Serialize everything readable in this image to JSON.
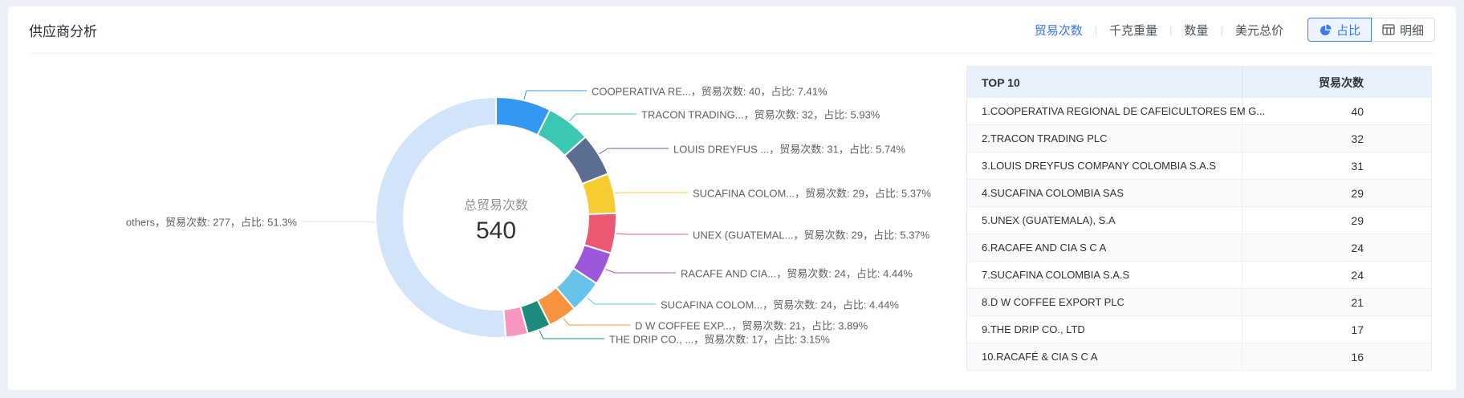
{
  "header": {
    "title": "供应商分析",
    "metric_tabs": [
      {
        "label": "贸易次数",
        "active": true
      },
      {
        "label": "千克重量",
        "active": false
      },
      {
        "label": "数量",
        "active": false
      },
      {
        "label": "美元总价",
        "active": false
      }
    ],
    "view_toggle": [
      {
        "label": "占比",
        "icon": "pie-icon",
        "active": true
      },
      {
        "label": "明细",
        "icon": "table-icon",
        "active": false
      }
    ]
  },
  "chart_data": {
    "type": "pie",
    "metric_label": "贸易次数",
    "percent_label": "占比",
    "center": {
      "label": "总贸易次数",
      "value": "540"
    },
    "total": 540,
    "slices": [
      {
        "name": "COOPERATIVA RE...",
        "value": 40,
        "percent": "7.41%",
        "color": "#3398f2"
      },
      {
        "name": "TRACON TRADING...",
        "value": 32,
        "percent": "5.93%",
        "color": "#3bc7b2"
      },
      {
        "name": "LOUIS DREYFUS ...",
        "value": 31,
        "percent": "5.74%",
        "color": "#5b6d90"
      },
      {
        "name": "SUCAFINA COLOM...",
        "value": 29,
        "percent": "5.37%",
        "color": "#f6cd31"
      },
      {
        "name": "UNEX (GUATEMAL...",
        "value": 29,
        "percent": "5.37%",
        "color": "#ec5872"
      },
      {
        "name": "RACAFE AND CIA...",
        "value": 24,
        "percent": "4.44%",
        "color": "#9d58da"
      },
      {
        "name": "SUCAFINA COLOM...",
        "value": 24,
        "percent": "4.44%",
        "color": "#67c3e9"
      },
      {
        "name": "D W COFFEE EXP...",
        "value": 21,
        "percent": "3.89%",
        "color": "#f79440"
      },
      {
        "name": "THE DRIP CO., ...",
        "value": 17,
        "percent": "3.15%",
        "color": "#1e8a7e"
      },
      {
        "name": "RACAFÉ & CIA S C A",
        "value": 16,
        "color": "#f895c0",
        "label_visible": false
      },
      {
        "name": "others",
        "value": 277,
        "percent": "51.3%",
        "color": "#d1e4fa"
      }
    ]
  },
  "table": {
    "columns": [
      "TOP 10",
      "贸易次数"
    ],
    "rows": [
      {
        "name": "1.COOPERATIVA REGIONAL DE CAFEICULTORES EM G...",
        "value": 40
      },
      {
        "name": "2.TRACON TRADING PLC",
        "value": 32
      },
      {
        "name": "3.LOUIS DREYFUS COMPANY COLOMBIA S.A.S",
        "value": 31
      },
      {
        "name": "4.SUCAFINA COLOMBIA SAS",
        "value": 29
      },
      {
        "name": "5.UNEX (GUATEMALA), S.A",
        "value": 29
      },
      {
        "name": "6.RACAFE AND CIA S C A",
        "value": 24
      },
      {
        "name": "7.SUCAFINA COLOMBIA S.A.S",
        "value": 24
      },
      {
        "name": "8.D W COFFEE EXPORT PLC",
        "value": 21
      },
      {
        "name": "9.THE DRIP CO., LTD",
        "value": 17
      },
      {
        "name": "10.RACAFÉ & CIA S C A",
        "value": 16
      }
    ]
  },
  "colors": {
    "accent": "#3377f6",
    "table_header_bg": "#e8f1fc",
    "page_bg": "#eef0f7"
  }
}
